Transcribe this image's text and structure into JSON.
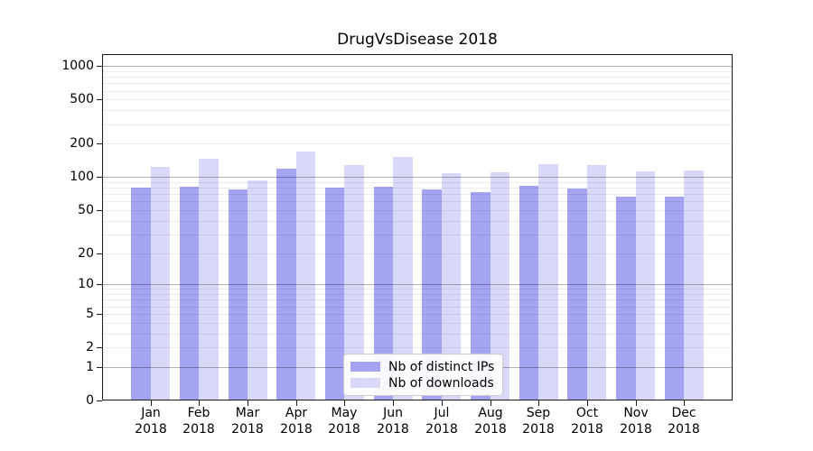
{
  "title": "DrugVsDisease 2018",
  "chart_data": {
    "type": "bar",
    "title": "DrugVsDisease 2018",
    "categories": [
      "Jan 2018",
      "Feb 2018",
      "Mar 2018",
      "Apr 2018",
      "May 2018",
      "Jun 2018",
      "Jul 2018",
      "Aug 2018",
      "Sep 2018",
      "Oct 2018",
      "Nov 2018",
      "Dec 2018"
    ],
    "series": [
      {
        "name": "Nb of distinct IPs",
        "key": "ips",
        "color": "#a4a4f2",
        "values": [
          80,
          82,
          77,
          120,
          80,
          82,
          77,
          73,
          84,
          79,
          66,
          66
        ]
      },
      {
        "name": "Nb of downloads",
        "key": "downloads",
        "color": "#d8d8f8",
        "values": [
          124,
          148,
          94,
          170,
          128,
          153,
          109,
          110,
          130,
          129,
          113,
          114
        ]
      }
    ],
    "xlabel": "",
    "ylabel": "",
    "yscale": "symlog",
    "yticks": [
      0,
      1,
      2,
      5,
      10,
      20,
      50,
      100,
      200,
      500,
      1000
    ],
    "minor_grid_values": [
      3,
      4,
      6,
      7,
      8,
      9,
      30,
      40,
      60,
      70,
      80,
      90,
      300,
      400,
      600,
      700,
      800,
      900
    ],
    "major_grid_values": [
      1,
      10,
      100,
      1000
    ],
    "ylim": [
      0,
      1283
    ],
    "grid": true,
    "legend": {
      "position": "lower center",
      "entries": [
        "Nb of distinct IPs",
        "Nb of downloads"
      ]
    },
    "colors": {
      "spine": "#1a1a1a",
      "major_grid": "#b0b0b0",
      "minor_grid": "#ebebeb",
      "background": "#ffffff"
    }
  }
}
